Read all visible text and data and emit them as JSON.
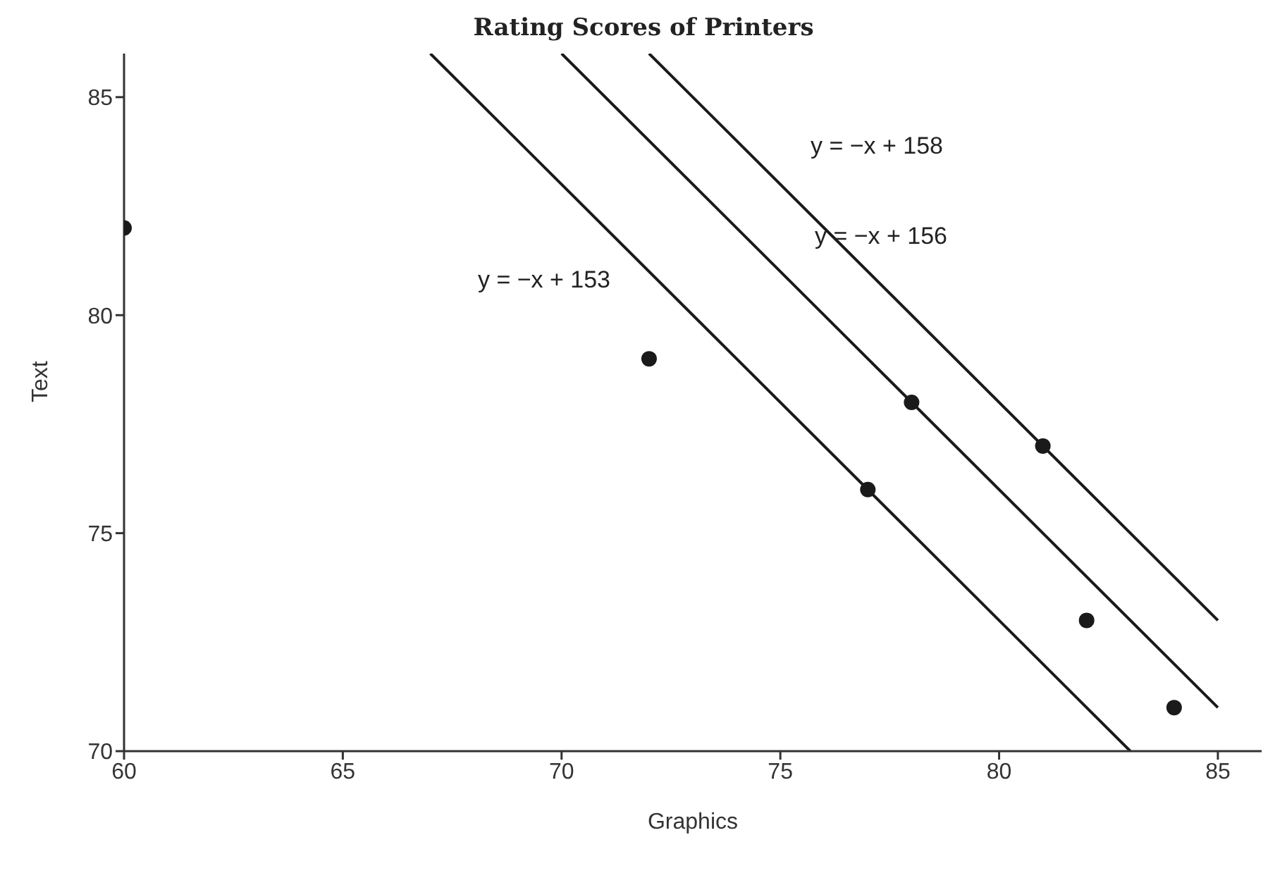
{
  "chart_data": {
    "type": "scatter",
    "title": "Rating Scores of Printers",
    "xlabel": "Graphics",
    "ylabel": "Text",
    "xlim": [
      60,
      86
    ],
    "xticks": [
      60,
      65,
      70,
      75,
      80,
      85
    ],
    "ylim": [
      70,
      86
    ],
    "yticks": [
      70,
      75,
      80,
      85
    ],
    "grid": false,
    "legend": false,
    "marker": "circle",
    "series": [
      {
        "color": "#1a1a1a",
        "x": [
          60,
          72,
          77,
          78,
          81,
          82,
          84
        ],
        "values": [
          82,
          79,
          76,
          78,
          77,
          73,
          71
        ]
      },
      {
        "type": "line",
        "color": "#1a1a1a",
        "marker": "none",
        "x": [
          67,
          83
        ],
        "values": [
          86,
          70
        ]
      },
      {
        "type": "line",
        "color": "#1a1a1a",
        "marker": "none",
        "x": [
          70,
          85
        ],
        "values": [
          86,
          71
        ]
      },
      {
        "type": "line",
        "color": "#1a1a1a",
        "marker": "none",
        "x": [
          72,
          85
        ],
        "values": [
          86,
          73
        ]
      }
    ],
    "annotations": [
      "y = −x + 153",
      "y = −x + 156",
      "y = −x + 158"
    ]
  }
}
